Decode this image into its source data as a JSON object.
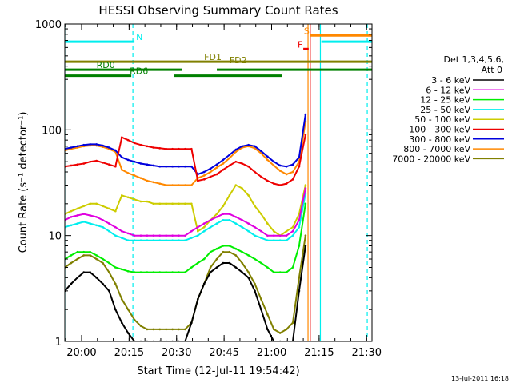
{
  "chart_data": {
    "type": "line",
    "title": "HESSI Observing Summary Count Rates",
    "xlabel": "Start Time (12-Jul-11 19:54:42)",
    "ylabel": "Count Rate (s⁻¹ detector⁻¹)",
    "x_unit": "minutes after 12-Jul-11 19:54:42",
    "xlim": [
      0,
      97
    ],
    "ylim": [
      1,
      1000
    ],
    "y_scale": "log",
    "x_ticks": [
      {
        "x": 5.3,
        "label": "20:00"
      },
      {
        "x": 20.3,
        "label": "20:15"
      },
      {
        "x": 35.3,
        "label": "20:30"
      },
      {
        "x": 50.3,
        "label": "20:45"
      },
      {
        "x": 65.3,
        "label": "21:00"
      },
      {
        "x": 80.3,
        "label": "21:15"
      },
      {
        "x": 95.3,
        "label": "21:30"
      }
    ],
    "y_ticks": [
      {
        "y": 1,
        "label": "1"
      },
      {
        "y": 10,
        "label": "10"
      },
      {
        "y": 100,
        "label": "100"
      },
      {
        "y": 1000,
        "label": "1000"
      }
    ],
    "legend": {
      "header_lines": [
        "Det 1,3,4,5,6,",
        "Att 0"
      ],
      "placement": "right"
    },
    "series": [
      {
        "name": "3 - 6 keV",
        "color": "#000000",
        "x": [
          0,
          2,
          4,
          6,
          8,
          10,
          12,
          14,
          16,
          18,
          20,
          22,
          24,
          26,
          28,
          30,
          32,
          34,
          36,
          38,
          40,
          42,
          44,
          46,
          48,
          50,
          52,
          54,
          56,
          58,
          60,
          62,
          64,
          66,
          68,
          70,
          72,
          74,
          76
        ],
        "y": [
          3,
          3.5,
          4,
          4.5,
          4.5,
          4,
          3.5,
          3,
          2,
          1.5,
          1.2,
          1,
          1,
          1,
          1,
          1,
          1,
          1,
          1,
          1,
          1.5,
          2.5,
          3.5,
          4.5,
          5,
          5.5,
          5.5,
          5,
          4.5,
          4,
          3,
          2,
          1.3,
          1,
          1,
          1,
          1,
          3,
          8
        ]
      },
      {
        "name": "6 - 12 keV",
        "color": "#e000e0",
        "x": [
          0,
          2,
          4,
          6,
          8,
          10,
          12,
          14,
          16,
          18,
          20,
          22,
          24,
          26,
          28,
          30,
          32,
          34,
          36,
          38,
          40,
          42,
          44,
          46,
          48,
          50,
          52,
          54,
          56,
          58,
          60,
          62,
          64,
          66,
          68,
          70,
          72,
          74,
          76
        ],
        "y": [
          14,
          15,
          15.5,
          16,
          15.5,
          15,
          14,
          13,
          12,
          11,
          10.5,
          10,
          10,
          10,
          10,
          10,
          10,
          10,
          10,
          10,
          11,
          12,
          13,
          14,
          15,
          16,
          16,
          15,
          14,
          13,
          12,
          11,
          10,
          10,
          10,
          10,
          11,
          14,
          28
        ]
      },
      {
        "name": "12 - 25 keV",
        "color": "#00ee00",
        "x": [
          0,
          2,
          4,
          6,
          8,
          10,
          12,
          14,
          16,
          18,
          20,
          22,
          24,
          26,
          28,
          30,
          32,
          34,
          36,
          38,
          40,
          42,
          44,
          46,
          48,
          50,
          52,
          54,
          56,
          58,
          60,
          62,
          64,
          66,
          68,
          70,
          72,
          74,
          76
        ],
        "y": [
          6,
          6.5,
          7,
          7,
          7,
          6.5,
          6,
          5.5,
          5,
          4.8,
          4.6,
          4.5,
          4.5,
          4.5,
          4.5,
          4.5,
          4.5,
          4.5,
          4.5,
          4.5,
          5,
          5.5,
          6,
          7,
          7.5,
          8,
          8,
          7.5,
          7,
          6.5,
          6,
          5.5,
          5,
          4.5,
          4.5,
          4.5,
          5,
          8,
          20
        ]
      },
      {
        "name": "25 - 50 keV",
        "color": "#00eeee",
        "x": [
          0,
          2,
          4,
          6,
          8,
          10,
          12,
          14,
          16,
          18,
          20,
          22,
          24,
          26,
          28,
          30,
          32,
          34,
          36,
          38,
          40,
          42,
          44,
          46,
          48,
          50,
          52,
          54,
          56,
          58,
          60,
          62,
          64,
          66,
          68,
          70,
          72,
          74,
          76
        ],
        "y": [
          12,
          12.5,
          13,
          13.5,
          13,
          12.5,
          12,
          11,
          10,
          9.5,
          9,
          9,
          9,
          9,
          9,
          9,
          9,
          9,
          9,
          9,
          9.5,
          10,
          11,
          12,
          13,
          14,
          14,
          13,
          12,
          11,
          10,
          9.5,
          9,
          9,
          9,
          9,
          10,
          12,
          25
        ]
      },
      {
        "name": "50 - 100 keV",
        "color": "#cccc00",
        "x": [
          0,
          2,
          4,
          6,
          8,
          10,
          12,
          14,
          16,
          18,
          20,
          22,
          24,
          26,
          28,
          30,
          32,
          34,
          36,
          38,
          40,
          42,
          44,
          46,
          48,
          50,
          52,
          54,
          56,
          58,
          60,
          62,
          64,
          66,
          68,
          70,
          72,
          74,
          76
        ],
        "y": [
          16,
          17,
          18,
          19,
          20,
          20,
          19,
          18,
          17,
          24,
          23,
          22,
          21,
          21,
          20,
          20,
          20,
          20,
          20,
          20,
          20,
          11,
          12,
          14,
          16,
          19,
          24,
          30,
          28,
          24,
          19,
          16,
          13,
          11,
          10,
          11,
          12,
          16,
          30
        ]
      },
      {
        "name": "100 - 300 keV",
        "color": "#ee0000",
        "x": [
          0,
          2,
          4,
          6,
          8,
          10,
          12,
          14,
          16,
          18,
          20,
          22,
          24,
          26,
          28,
          30,
          32,
          34,
          36,
          38,
          40,
          42,
          44,
          46,
          48,
          50,
          52,
          54,
          56,
          58,
          60,
          62,
          64,
          66,
          68,
          70,
          72,
          74,
          76
        ],
        "y": [
          45,
          46,
          47,
          48,
          50,
          51,
          49,
          47,
          45,
          85,
          80,
          75,
          72,
          70,
          68,
          67,
          66,
          66,
          66,
          66,
          66,
          33,
          34,
          36,
          38,
          42,
          46,
          50,
          48,
          45,
          40,
          36,
          33,
          31,
          30,
          31,
          34,
          45,
          90
        ]
      },
      {
        "name": "300 - 800 keV",
        "color": "#0000dd",
        "x": [
          0,
          2,
          4,
          6,
          8,
          10,
          12,
          14,
          16,
          18,
          20,
          22,
          24,
          26,
          28,
          30,
          32,
          34,
          36,
          38,
          40,
          42,
          44,
          46,
          48,
          50,
          52,
          54,
          56,
          58,
          60,
          62,
          64,
          66,
          68,
          70,
          72,
          74,
          76
        ],
        "y": [
          66,
          68,
          70,
          72,
          73,
          73,
          71,
          68,
          64,
          55,
          52,
          50,
          48,
          47,
          46,
          45,
          45,
          45,
          45,
          45,
          45,
          38,
          40,
          43,
          47,
          52,
          58,
          65,
          70,
          72,
          70,
          63,
          56,
          50,
          46,
          45,
          47,
          55,
          140
        ]
      },
      {
        "name": "800 - 7000 keV",
        "color": "#ff8800",
        "x": [
          0,
          2,
          4,
          6,
          8,
          10,
          12,
          14,
          16,
          18,
          20,
          22,
          24,
          26,
          28,
          30,
          32,
          34,
          36,
          38,
          40,
          42,
          44,
          46,
          48,
          50,
          52,
          54,
          56,
          58,
          60,
          62,
          64,
          66,
          68,
          70,
          72,
          74,
          76
        ],
        "y": [
          64,
          66,
          68,
          70,
          71,
          71,
          69,
          66,
          62,
          42,
          39,
          37,
          35,
          33,
          32,
          31,
          30,
          30,
          30,
          30,
          30,
          35,
          37,
          40,
          44,
          48,
          54,
          62,
          68,
          70,
          67,
          60,
          52,
          46,
          41,
          38,
          40,
          50,
          120
        ]
      },
      {
        "name": "7000 - 20000 keV",
        "color": "#808000",
        "x": [
          0,
          2,
          4,
          6,
          8,
          10,
          12,
          14,
          16,
          18,
          20,
          22,
          24,
          26,
          28,
          30,
          32,
          34,
          36,
          38,
          40,
          42,
          44,
          46,
          48,
          50,
          52,
          54,
          56,
          58,
          60,
          62,
          64,
          66,
          68,
          70,
          72,
          74,
          76
        ],
        "y": [
          5,
          5.5,
          6,
          6.5,
          6.5,
          6,
          5.5,
          4.5,
          3.5,
          2.5,
          2,
          1.6,
          1.4,
          1.3,
          1.3,
          1.3,
          1.3,
          1.3,
          1.3,
          1.3,
          1.5,
          2.5,
          3.5,
          5,
          6,
          7,
          7,
          6.5,
          5.5,
          4.5,
          3.5,
          2.5,
          1.8,
          1.3,
          1.2,
          1.3,
          1.5,
          4,
          10
        ]
      }
    ],
    "flag_bars": [
      {
        "label": "N",
        "color": "#00eeee",
        "y": 680,
        "segments": [
          [
            0,
            22
          ],
          [
            81,
            97
          ]
        ]
      },
      {
        "label": "S",
        "color": "#ff8800",
        "y": 780,
        "segments": [
          [
            77.5,
            97
          ]
        ]
      },
      {
        "label": "F",
        "color": "#ee0000",
        "y": 580,
        "segments": [
          [
            75.3,
            77
          ]
        ]
      },
      {
        "label": "FD1",
        "color": "#808000",
        "y": 440,
        "segments": [
          [
            0,
            97
          ]
        ]
      },
      {
        "label": "FD2",
        "color": "#808000",
        "y": 410,
        "segments": []
      },
      {
        "label": "RD0",
        "color": "#008000",
        "y": 370,
        "segments": [
          [
            0,
            37
          ],
          [
            48,
            97
          ]
        ]
      },
      {
        "label": "RD6",
        "color": "#008000",
        "y": 325,
        "segments": [
          [
            0,
            21
          ],
          [
            34.5,
            68.5
          ]
        ]
      }
    ],
    "vertical_markers": [
      {
        "x": 0,
        "color": "#00eeee",
        "style": "solid"
      },
      {
        "x": 21.5,
        "color": "#00eeee",
        "style": "dashed"
      },
      {
        "x": 80.7,
        "color": "#00eeee",
        "style": "solid"
      },
      {
        "x": 95.5,
        "color": "#00eeee",
        "style": "dashed"
      },
      {
        "x": 76.8,
        "color": "#ff8800",
        "style": "solid"
      },
      {
        "x": 77.5,
        "color": "#ee0000",
        "style": "solid"
      }
    ],
    "footer_date": "13-Jul-2011 16:18"
  }
}
